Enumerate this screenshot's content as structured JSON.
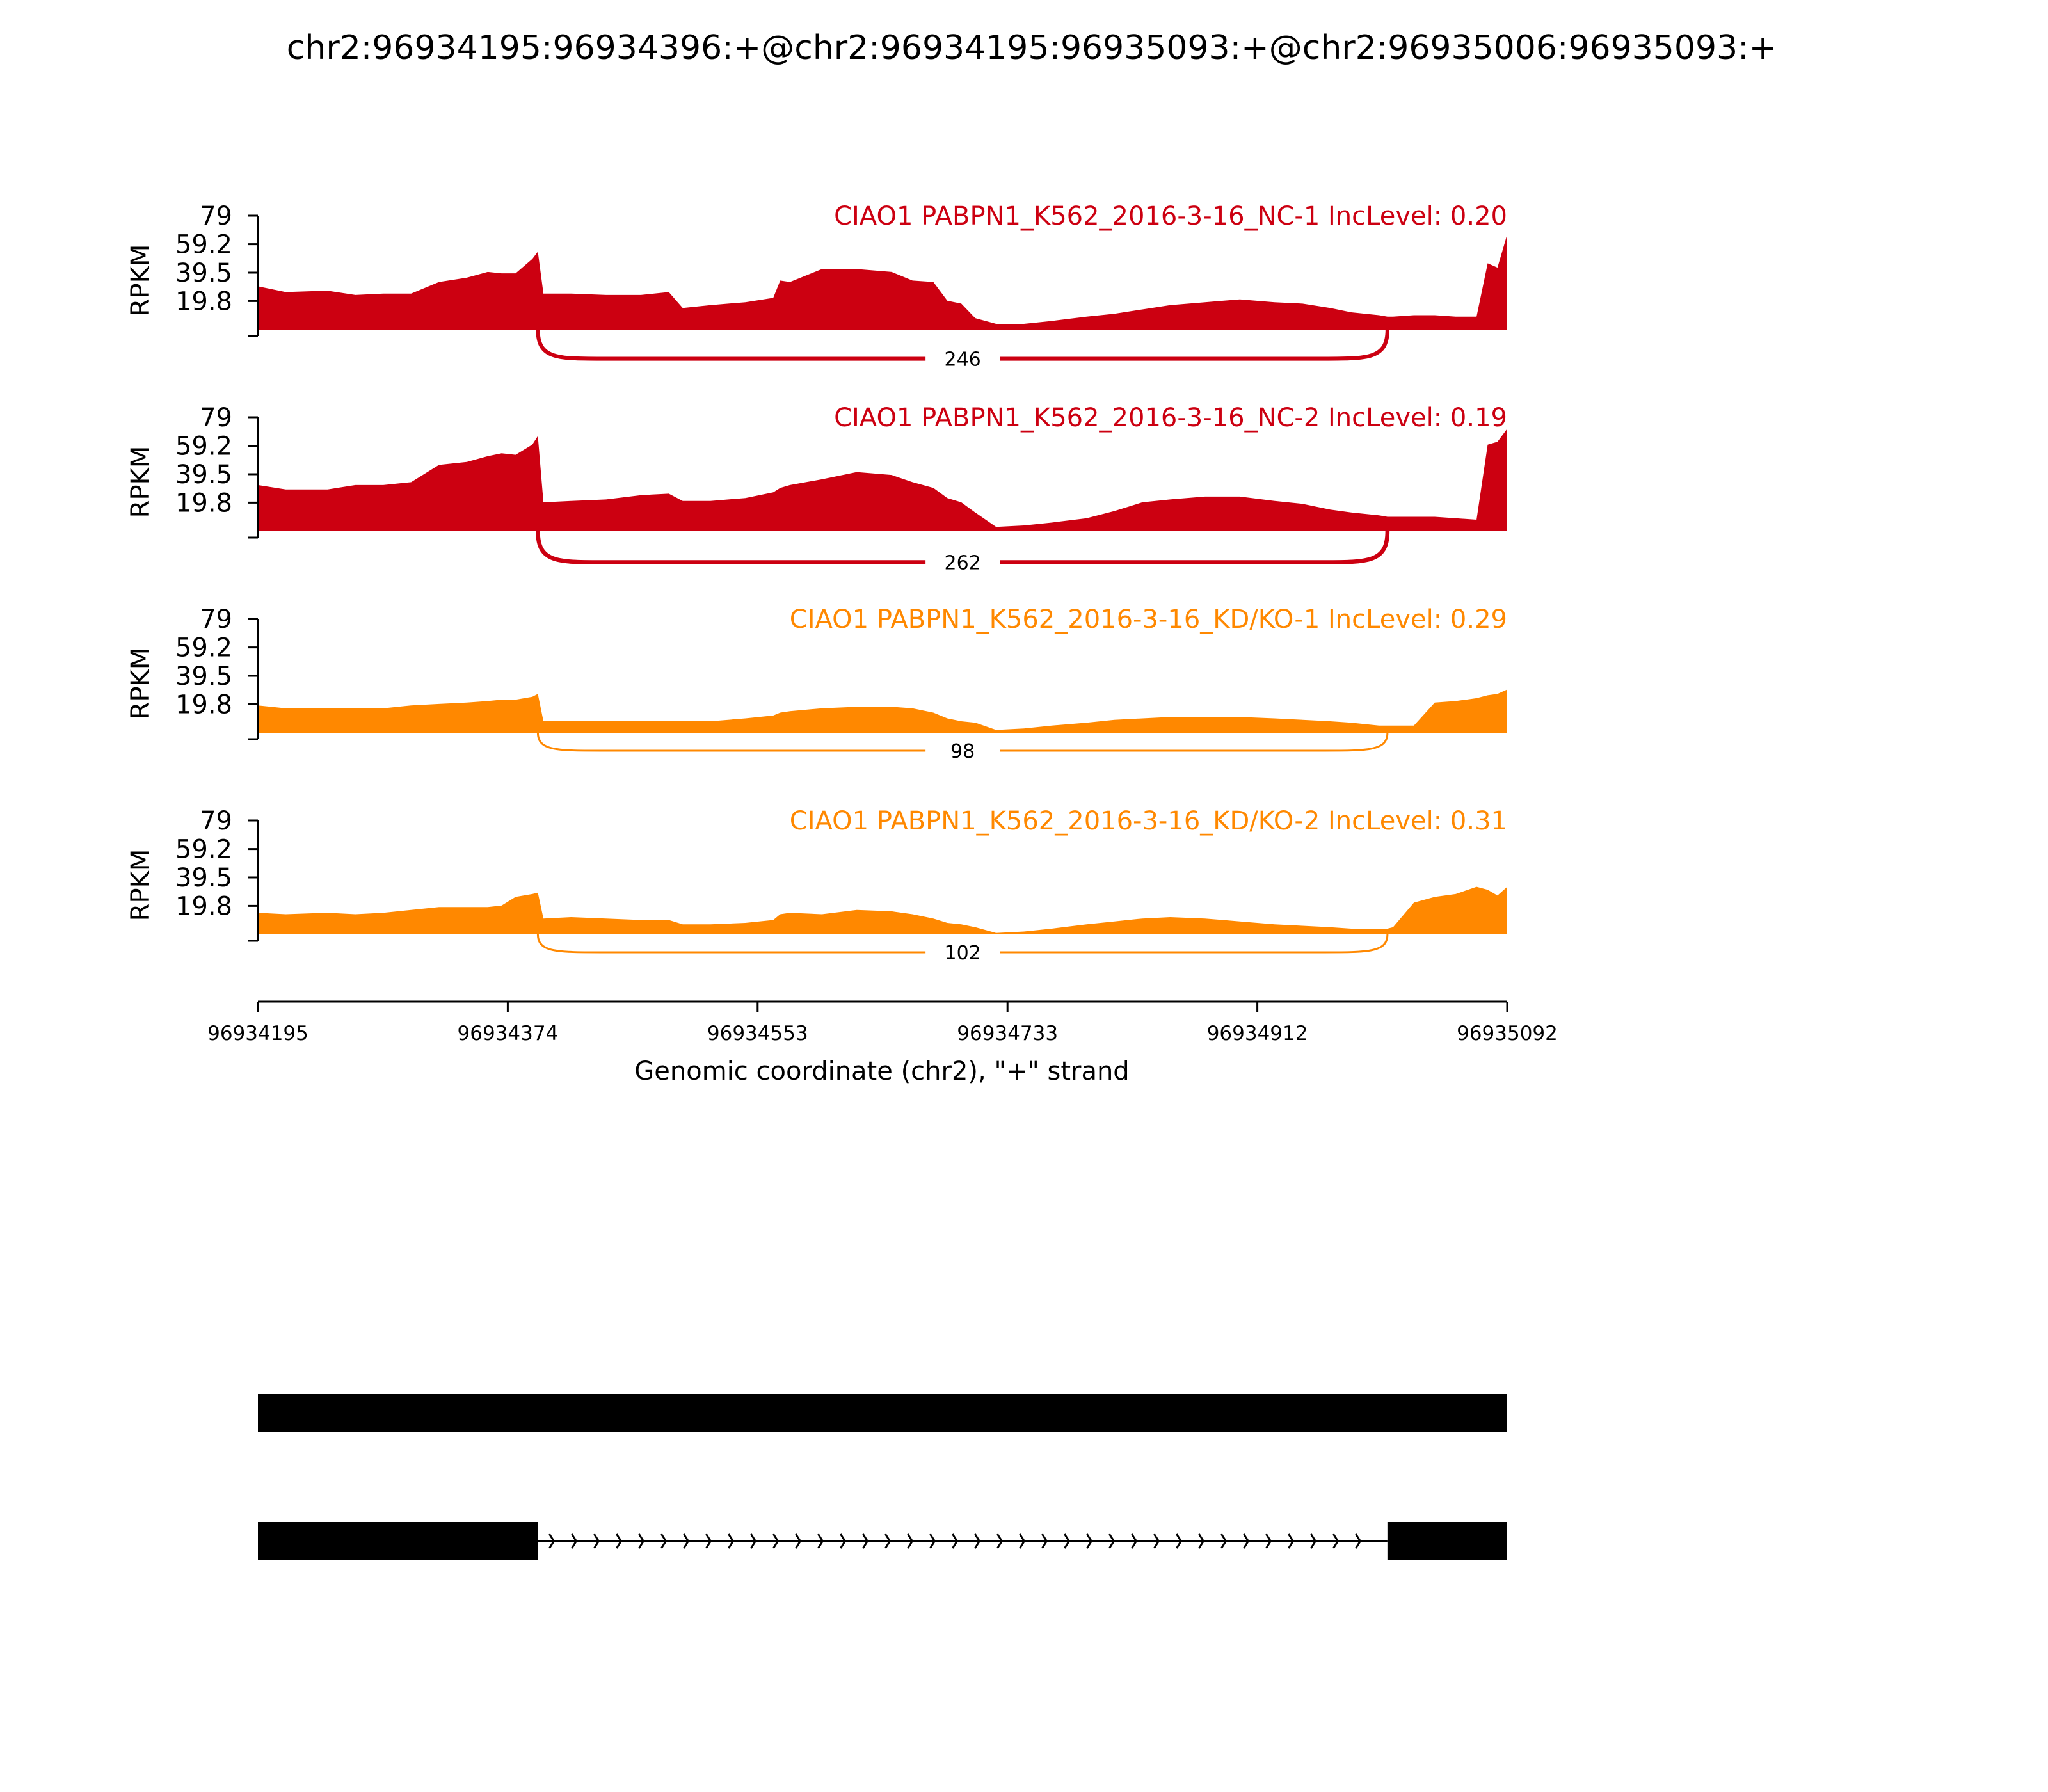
{
  "chart_data": {
    "type": "area",
    "title": "chr2:96934195:96934396:+@chr2:96934195:96935093:+@chr2:96935006:96935093:+",
    "xlabel": "Genomic coordinate (chr2), \"+\" strand",
    "ylabel": "RPKM",
    "xlim": [
      96934195,
      96935092
    ],
    "ylim": [
      0,
      79
    ],
    "xticks": [
      "96934195",
      "96934374",
      "96934553",
      "96934733",
      "96934912",
      "96935092"
    ],
    "yticks": [
      "79",
      "59.2",
      "39.5",
      "19.8"
    ],
    "series": [
      {
        "name": "CIAO1 PABPN1_K562_2016-3-16_NC-1 IncLevel: 0.20",
        "color": "#cc0011",
        "junction": {
          "start": 96934396,
          "end": 96935006,
          "count": "246"
        },
        "x": [
          96934195,
          96934215,
          96934245,
          96934265,
          96934285,
          96934305,
          96934325,
          96934345,
          96934360,
          96934370,
          96934380,
          96934392,
          96934396,
          96934400,
          96934420,
          96934445,
          96934470,
          96934490,
          96934500,
          96934520,
          96934545,
          96934565,
          96934570,
          96934577,
          96934600,
          96934625,
          96934650,
          96934665,
          96934680,
          96934690,
          96934700,
          96934710,
          96934725,
          96934745,
          96934765,
          96934790,
          96934810,
          96934830,
          96934850,
          96934875,
          96934900,
          96934925,
          96934945,
          96934965,
          96934980,
          96934990,
          96935000,
          96935006,
          96935010,
          96935025,
          96935040,
          96935055,
          96935070,
          96935078,
          96935085,
          96935092
        ],
        "values": [
          30,
          26,
          27,
          24,
          25,
          25,
          33,
          36,
          40,
          39,
          39,
          49,
          54,
          25,
          25,
          24,
          24,
          26,
          15,
          17,
          19,
          22,
          34,
          33,
          42,
          42,
          40,
          34,
          33,
          20,
          18,
          8,
          4,
          4,
          6,
          9,
          11,
          14,
          17,
          19,
          21,
          19,
          18,
          15,
          12,
          11,
          10,
          9,
          9,
          10,
          10,
          9,
          9,
          46,
          43,
          66
        ]
      },
      {
        "name": "CIAO1 PABPN1_K562_2016-3-16_NC-2 IncLevel: 0.19",
        "color": "#cc0011",
        "junction": {
          "start": 96934396,
          "end": 96935006,
          "count": "262"
        },
        "x": [
          96934195,
          96934215,
          96934245,
          96934265,
          96934285,
          96934305,
          96934325,
          96934345,
          96934360,
          96934370,
          96934380,
          96934392,
          96934396,
          96934400,
          96934420,
          96934445,
          96934470,
          96934490,
          96934500,
          96934520,
          96934545,
          96934565,
          96934570,
          96934577,
          96934600,
          96934625,
          96934650,
          96934665,
          96934680,
          96934690,
          96934700,
          96934710,
          96934725,
          96934745,
          96934765,
          96934790,
          96934810,
          96934830,
          96934850,
          96934875,
          96934900,
          96934925,
          96934945,
          96934965,
          96934980,
          96934990,
          96935000,
          96935006,
          96935010,
          96935025,
          96935040,
          96935055,
          96935070,
          96935078,
          96935085,
          96935092
        ],
        "values": [
          32,
          29,
          29,
          32,
          32,
          34,
          46,
          48,
          52,
          54,
          53,
          60,
          66,
          20,
          21,
          22,
          25,
          26,
          21,
          21,
          23,
          27,
          30,
          32,
          36,
          41,
          39,
          34,
          30,
          23,
          20,
          13,
          3,
          4,
          6,
          9,
          14,
          20,
          22,
          24,
          24,
          21,
          19,
          15,
          13,
          12,
          11,
          10,
          10,
          10,
          10,
          9,
          8,
          60,
          62,
          71
        ]
      },
      {
        "name": "CIAO1 PABPN1_K562_2016-3-16_KD/KO-1 IncLevel: 0.29",
        "color": "#ff8800",
        "junction": {
          "start": 96934396,
          "end": 96935006,
          "count": "98"
        },
        "x": [
          96934195,
          96934215,
          96934245,
          96934265,
          96934285,
          96934305,
          96934325,
          96934345,
          96934360,
          96934370,
          96934380,
          96934392,
          96934396,
          96934400,
          96934420,
          96934445,
          96934470,
          96934490,
          96934500,
          96934520,
          96934545,
          96934565,
          96934570,
          96934577,
          96934600,
          96934625,
          96934650,
          96934665,
          96934680,
          96934690,
          96934700,
          96934710,
          96934725,
          96934745,
          96934765,
          96934790,
          96934810,
          96934830,
          96934850,
          96934875,
          96934900,
          96934925,
          96934945,
          96934965,
          96934980,
          96934990,
          96935000,
          96935006,
          96935010,
          96935025,
          96935040,
          96935055,
          96935070,
          96935078,
          96935085,
          96935092
        ],
        "values": [
          19,
          17,
          17,
          17,
          17,
          19,
          20,
          21,
          22,
          23,
          23,
          25,
          27,
          8,
          8,
          8,
          8,
          8,
          8,
          8,
          10,
          12,
          14,
          15,
          17,
          18,
          18,
          17,
          14,
          10,
          8,
          7,
          2,
          3,
          5,
          7,
          9,
          10,
          11,
          11,
          11,
          10,
          9,
          8,
          7,
          6,
          5,
          5,
          5,
          5,
          21,
          22,
          24,
          26,
          27,
          30
        ]
      },
      {
        "name": "CIAO1 PABPN1_K562_2016-3-16_KD/KO-2 IncLevel: 0.31",
        "color": "#ff8800",
        "junction": {
          "start": 96934396,
          "end": 96935006,
          "count": "102"
        },
        "x": [
          96934195,
          96934215,
          96934245,
          96934265,
          96934285,
          96934305,
          96934325,
          96934345,
          96934360,
          96934370,
          96934380,
          96934392,
          96934396,
          96934400,
          96934420,
          96934445,
          96934470,
          96934490,
          96934500,
          96934520,
          96934545,
          96934565,
          96934570,
          96934577,
          96934600,
          96934625,
          96934650,
          96934665,
          96934680,
          96934690,
          96934700,
          96934710,
          96934725,
          96934745,
          96934765,
          96934790,
          96934810,
          96934830,
          96934850,
          96934875,
          96934900,
          96934925,
          96934945,
          96934965,
          96934980,
          96934990,
          96935000,
          96935006,
          96935010,
          96935025,
          96935040,
          96935055,
          96935070,
          96935078,
          96935085,
          96935092
        ],
        "values": [
          15,
          14,
          15,
          14,
          15,
          17,
          19,
          19,
          19,
          20,
          26,
          28,
          29,
          11,
          12,
          11,
          10,
          10,
          7,
          7,
          8,
          10,
          14,
          15,
          14,
          17,
          16,
          14,
          11,
          8,
          7,
          5,
          1,
          2,
          4,
          7,
          9,
          11,
          12,
          11,
          9,
          7,
          6,
          5,
          4,
          4,
          4,
          4,
          5,
          22,
          26,
          28,
          33,
          31,
          27,
          33
        ]
      }
    ],
    "gene_models": [
      {
        "exons": [
          [
            96934195,
            96935092
          ]
        ],
        "introns": []
      },
      {
        "exons": [
          [
            96934195,
            96934396
          ],
          [
            96935006,
            96935092
          ]
        ],
        "introns": [
          [
            96934396,
            96935006
          ]
        ]
      }
    ]
  }
}
